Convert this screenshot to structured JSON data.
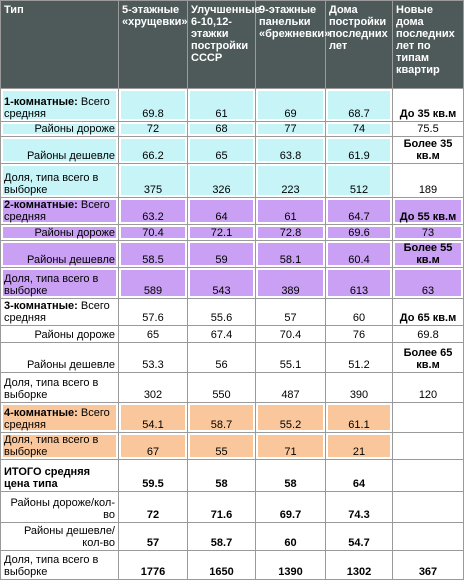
{
  "table": {
    "header": [
      "Тип",
      "5-этажные «хрущевки»",
      "Улучшенные 6-10,12-этажки постройки СССР",
      "9-этажные панельки «брежневки»",
      "Дома постройки последних лет",
      "Новые дома последних лет по типам квартир"
    ],
    "rows": [
      {
        "label_bold": "1-комнатные:",
        "label": "Всего средняя",
        "cells": [
          "69.8",
          "61",
          "69",
          "68.7",
          "До 35 кв.м"
        ],
        "color": "#c6f4f7",
        "last_color": "#ffffff"
      },
      {
        "label": "Районы дороже",
        "cells": [
          "72",
          "68",
          "77",
          "74",
          "75.5"
        ],
        "color": "#c6f4f7",
        "last_color": "#ffffff"
      },
      {
        "label": "Районы дешевле",
        "cells": [
          "66.2",
          "65",
          "63.8",
          "61.9",
          "Более 35 кв.м"
        ],
        "color": "#c6f4f7",
        "last_color": "#ffffff"
      },
      {
        "label": "Доля, типа всего в выборке",
        "cells": [
          "375",
          "326",
          "223",
          "512",
          "189"
        ],
        "color": "#c6f4f7",
        "last_color": "#ffffff"
      },
      {
        "label_bold": "2-комнатные:",
        "label": "Всего средняя",
        "cells": [
          "63.2",
          "64",
          "61",
          "64.7",
          "До 55 кв.м"
        ],
        "color": "#c9a0f3",
        "last_color": "#c9a0f3"
      },
      {
        "label": "Районы дороже",
        "cells": [
          "70.4",
          "72.1",
          "72.8",
          "69.6",
          "73"
        ],
        "color": "#c9a0f3",
        "last_color": "#c9a0f3"
      },
      {
        "label": "Районы дешевле",
        "cells": [
          "58.5",
          "59",
          "58.1",
          "60.4",
          "Более 55 кв.м"
        ],
        "color": "#c9a0f3",
        "last_color": "#c9a0f3"
      },
      {
        "label": "Доля, типа всего в выборке",
        "cells": [
          "589",
          "543",
          "389",
          "613",
          "63"
        ],
        "color": "#c9a0f3",
        "last_color": "#c9a0f3"
      },
      {
        "label_bold": "3-комнатные:",
        "label": "Всего средняя",
        "cells": [
          "57.6",
          "55.6",
          "57",
          "60",
          "До 65 кв.м"
        ],
        "color": "#ffffff",
        "last_color": "#ffffff"
      },
      {
        "label": "Районы дороже",
        "cells": [
          "65",
          "67.4",
          "70.4",
          "76",
          "69.8"
        ],
        "color": "#ffffff",
        "last_color": "#ffffff"
      },
      {
        "label": "Районы дешевле",
        "cells": [
          "53.3",
          "56",
          "55.1",
          "51.2",
          "Более 65 кв.м"
        ],
        "color": "#ffffff",
        "last_color": "#ffffff"
      },
      {
        "label": "Доля, типа всего в выборке",
        "cells": [
          "302",
          "550",
          "487",
          "390",
          "120"
        ],
        "color": "#ffffff",
        "last_color": "#ffffff"
      },
      {
        "label_bold": "4-комнатные:",
        "label": "Всего средняя",
        "cells": [
          "54.1",
          "58.7",
          "55.2",
          "61.1",
          null
        ],
        "color": "#f9c79b",
        "last_color": "#ffffff"
      },
      {
        "label": "Доля, типа всего в выборке",
        "cells": [
          "67",
          "55",
          "71",
          "21",
          null
        ],
        "color": "#f9c79b",
        "last_color": "#ffffff"
      },
      {
        "label_bold": "ИТОГО средняя цена типа",
        "cells": [
          "59.5",
          "58",
          "58",
          "64",
          null
        ],
        "color": "#ffffff",
        "last_color": "#ffffff"
      },
      {
        "label": "Районы дороже/кол-во",
        "cells": [
          "72",
          "71.6",
          "69.7",
          "74.3",
          null
        ],
        "color": "#ffffff",
        "last_color": "#ffffff"
      },
      {
        "label": "Районы дешевле/кол-во",
        "cells": [
          "57",
          "58.7",
          "60",
          "54.7",
          null
        ],
        "color": "#ffffff",
        "last_color": "#ffffff"
      },
      {
        "label": "Доля, типа всего в выборке",
        "cells": [
          "1776",
          "1650",
          "1390",
          "1302",
          "367"
        ],
        "color": "#ffffff",
        "last_color": "#ffffff"
      }
    ]
  }
}
